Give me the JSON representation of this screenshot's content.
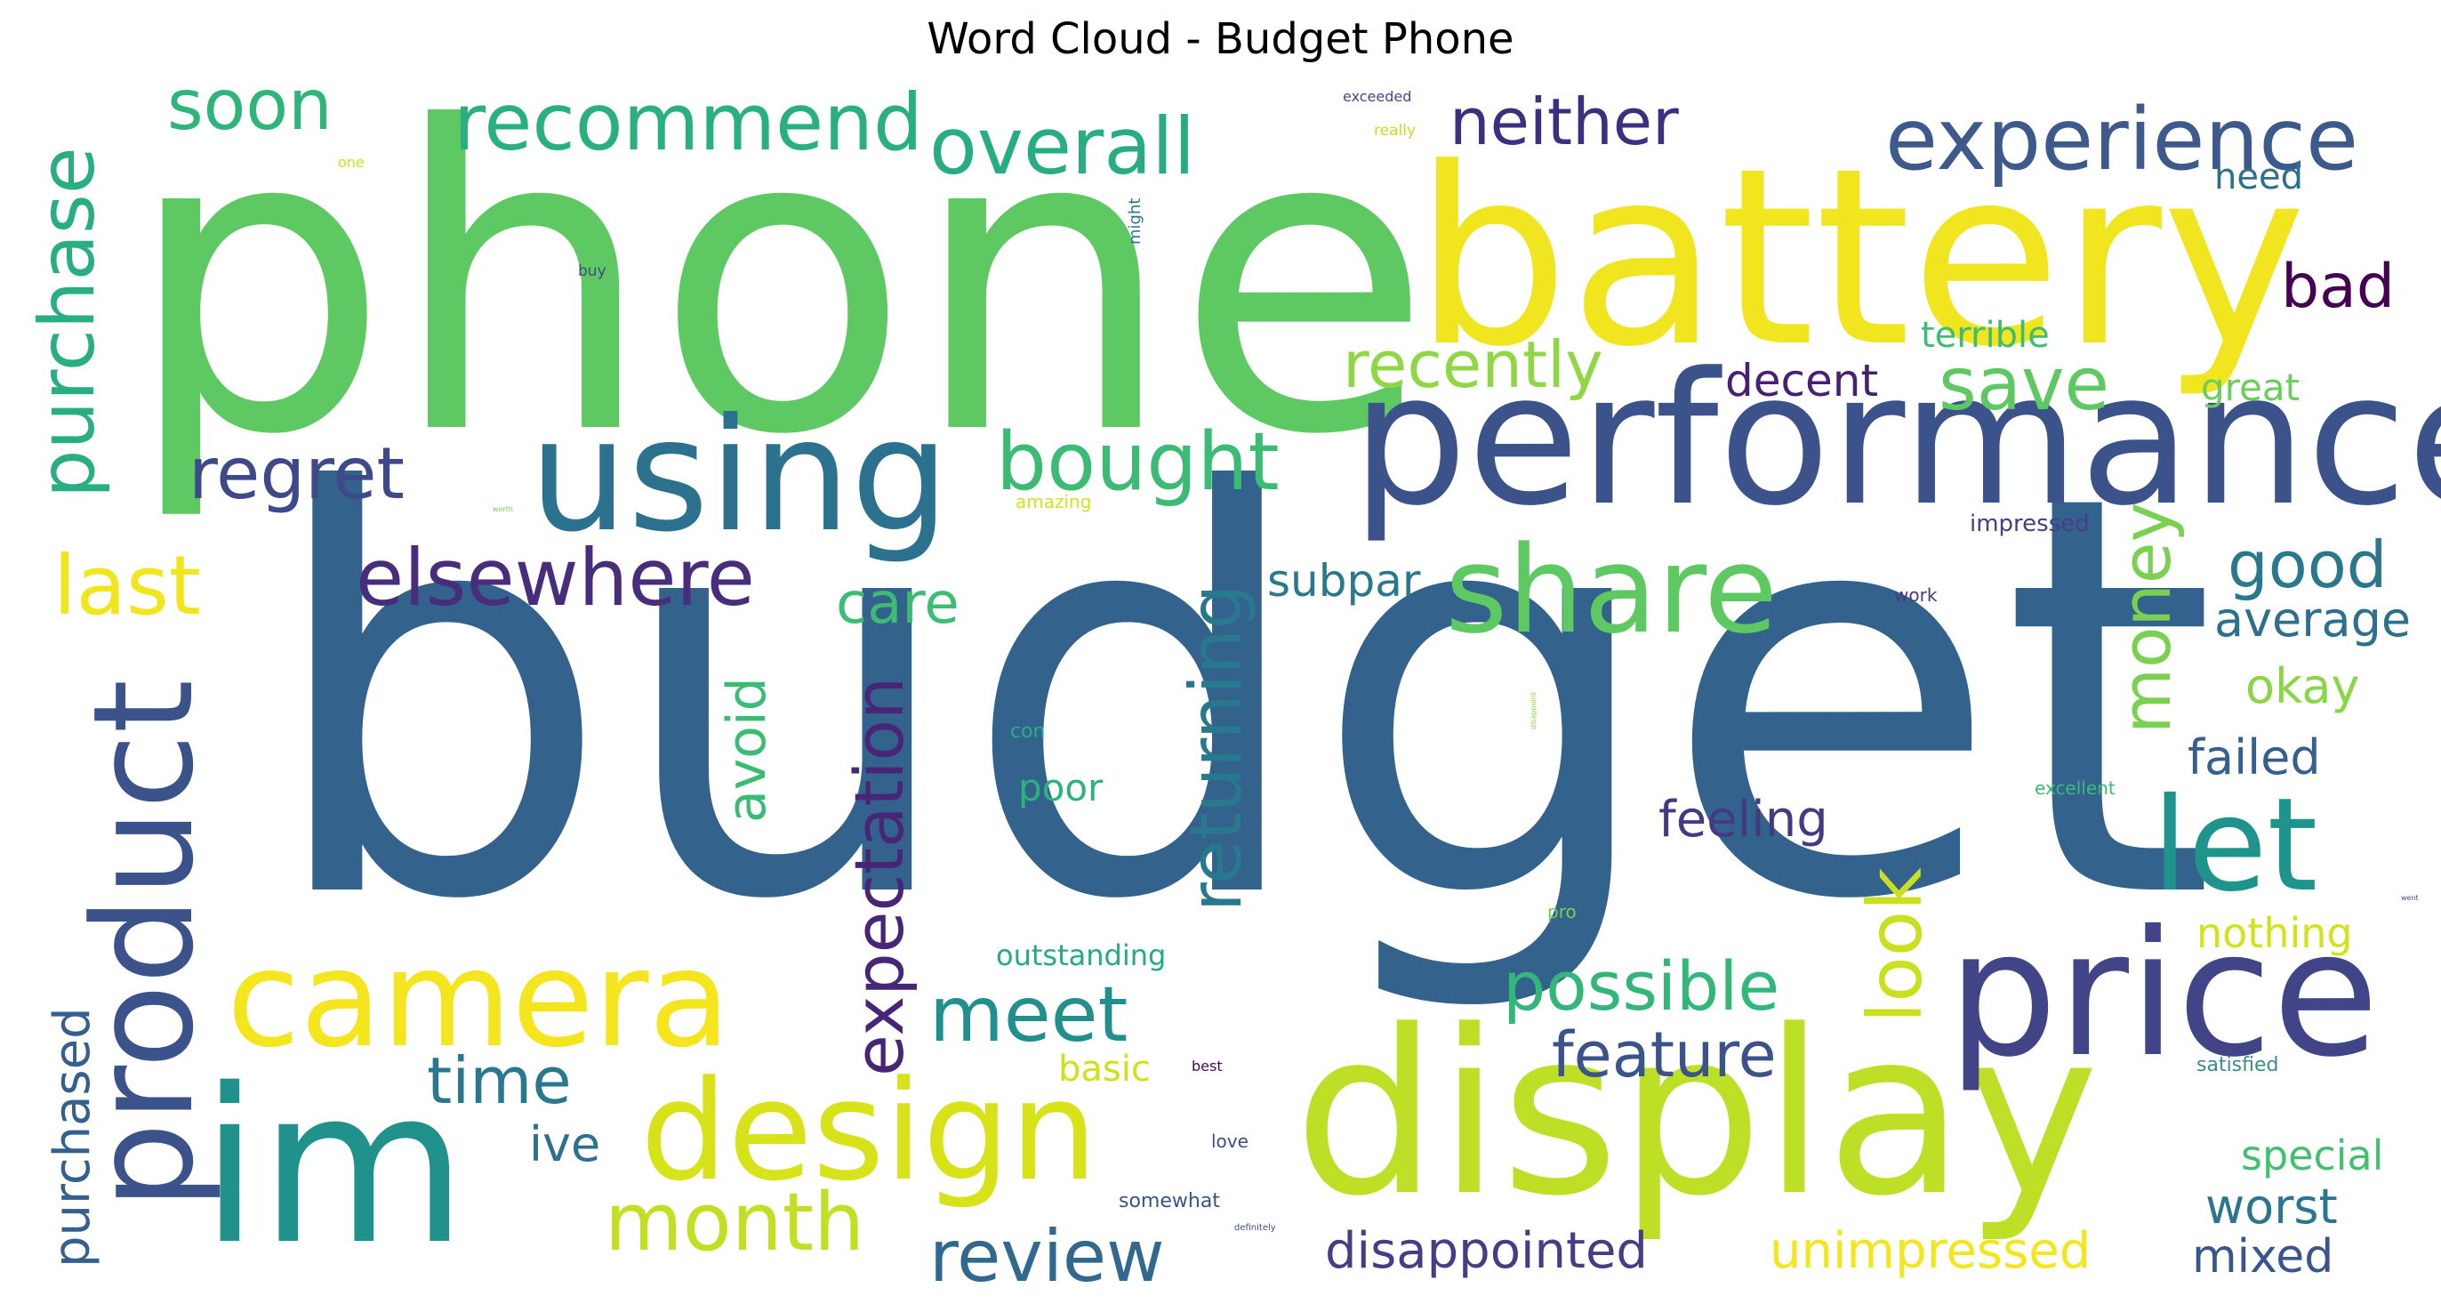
{
  "title": "Word Cloud - Budget Phone",
  "words": [
    {
      "text": "budget",
      "color": "#33638d"
    },
    {
      "text": "phone",
      "color": "#5ec962"
    },
    {
      "text": "battery",
      "color": "#f0e51f"
    },
    {
      "text": "performance",
      "color": "#3b528b"
    },
    {
      "text": "display",
      "color": "#bddf26"
    },
    {
      "text": "im",
      "color": "#21918c"
    },
    {
      "text": "price",
      "color": "#414487"
    },
    {
      "text": "using",
      "color": "#2c728e"
    },
    {
      "text": "design",
      "color": "#d8e219"
    },
    {
      "text": "camera",
      "color": "#f5e51f"
    },
    {
      "text": "product",
      "color": "#3b528b"
    },
    {
      "text": "share",
      "color": "#5ec962"
    },
    {
      "text": "let",
      "color": "#1f948c"
    },
    {
      "text": "experience",
      "color": "#3e5a8c"
    },
    {
      "text": "recommend",
      "color": "#2ab07f"
    },
    {
      "text": "overall",
      "color": "#27ad81"
    },
    {
      "text": "purchase",
      "color": "#28ae80"
    },
    {
      "text": "bought",
      "color": "#3cbb75"
    },
    {
      "text": "elsewhere",
      "color": "#472d7b"
    },
    {
      "text": "regret",
      "color": "#3e4989"
    },
    {
      "text": "neither",
      "color": "#3b2f80"
    },
    {
      "text": "soon",
      "color": "#2fb47c"
    },
    {
      "text": "last",
      "color": "#f1e51d"
    },
    {
      "text": "returning",
      "color": "#29798e"
    },
    {
      "text": "expectation",
      "color": "#482677"
    },
    {
      "text": "money",
      "color": "#7ad151"
    },
    {
      "text": "look",
      "color": "#c8e020"
    },
    {
      "text": "meet",
      "color": "#21908d"
    },
    {
      "text": "month",
      "color": "#c2df23"
    },
    {
      "text": "review",
      "color": "#31688e"
    },
    {
      "text": "possible",
      "color": "#32b67a"
    },
    {
      "text": "save",
      "color": "#5ec962"
    },
    {
      "text": "recently",
      "color": "#8fd744"
    },
    {
      "text": "good",
      "color": "#2a788e"
    },
    {
      "text": "time",
      "color": "#2a788e"
    },
    {
      "text": "feature",
      "color": "#3b528b"
    },
    {
      "text": "purchased",
      "color": "#35608d"
    },
    {
      "text": "avoid",
      "color": "#3cbb75"
    },
    {
      "text": "care",
      "color": "#3dbc74"
    },
    {
      "text": "bad",
      "color": "#440154"
    },
    {
      "text": "disappointed",
      "color": "#433e85"
    },
    {
      "text": "unimpressed",
      "color": "#f4e61e"
    },
    {
      "text": "subpar",
      "color": "#2a788e"
    },
    {
      "text": "average",
      "color": "#2d708e"
    },
    {
      "text": "okay",
      "color": "#8bd646"
    },
    {
      "text": "failed",
      "color": "#355f8d"
    },
    {
      "text": "feeling",
      "color": "#443a83"
    },
    {
      "text": "decent",
      "color": "#482071"
    },
    {
      "text": "ive",
      "color": "#2d718e"
    },
    {
      "text": "worst",
      "color": "#2b758e"
    },
    {
      "text": "mixed",
      "color": "#3a548c"
    },
    {
      "text": "special",
      "color": "#44bf70"
    },
    {
      "text": "nothing",
      "color": "#d2e21b"
    },
    {
      "text": "terrible",
      "color": "#3dbc74"
    },
    {
      "text": "great",
      "color": "#6ccd5a"
    },
    {
      "text": "need",
      "color": "#2e6e8e"
    },
    {
      "text": "basic",
      "color": "#d0e11c"
    },
    {
      "text": "poor",
      "color": "#2db27d"
    },
    {
      "text": "outstanding",
      "color": "#25ab82"
    },
    {
      "text": "impressed",
      "color": "#424086"
    },
    {
      "text": "amazing",
      "color": "#d5e21a"
    },
    {
      "text": "work",
      "color": "#443983"
    },
    {
      "text": "con",
      "color": "#27ad81"
    },
    {
      "text": "excellent",
      "color": "#3cbb75"
    },
    {
      "text": "satisfied",
      "color": "#3b8c8c"
    },
    {
      "text": "pro",
      "color": "#73d056"
    },
    {
      "text": "love",
      "color": "#3e4c8a"
    },
    {
      "text": "somewhat",
      "color": "#3b528b"
    },
    {
      "text": "best",
      "color": "#46085c"
    },
    {
      "text": "definitely",
      "color": "#3b528b"
    },
    {
      "text": "exceeded",
      "color": "#3e4989"
    },
    {
      "text": "really",
      "color": "#c5e021"
    },
    {
      "text": "one",
      "color": "#cde11d"
    },
    {
      "text": "might",
      "color": "#2c728e"
    },
    {
      "text": "buy",
      "color": "#3e4989"
    },
    {
      "text": "worth",
      "color": "#6ece58"
    },
    {
      "text": "disappoint",
      "color": "#8fd744"
    },
    {
      "text": "went",
      "color": "#3b528b"
    }
  ]
}
